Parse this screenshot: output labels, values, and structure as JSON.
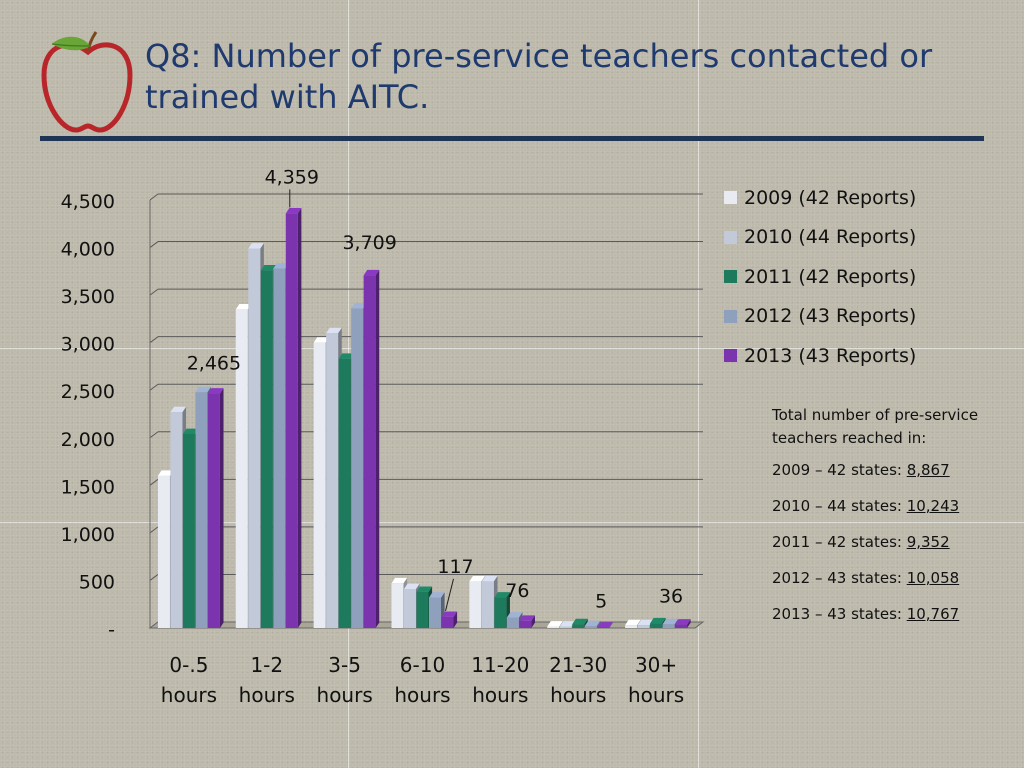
{
  "slide": {
    "title": "Q8: Number of pre-service teachers contacted or trained with AITC."
  },
  "logo": {
    "icon": "apple-icon",
    "colors": {
      "apple": "#b8262a",
      "leaf": "#6aa538"
    }
  },
  "chart_data": {
    "type": "bar",
    "categories": [
      "0-.5 hours",
      "1-2 hours",
      "3-5 hours",
      "6-10 hours",
      "11-20 hours",
      "21-30 hours",
      "30+ hours"
    ],
    "category_lines": [
      [
        "0-.5",
        "hours"
      ],
      [
        "1-2",
        "hours"
      ],
      [
        "3-5",
        "hours"
      ],
      [
        "6-10",
        "hours"
      ],
      [
        "11-20",
        "hours"
      ],
      [
        "21-30",
        "hours"
      ],
      [
        "30+",
        "hours"
      ]
    ],
    "series": [
      {
        "name": "2009 (42 Reports)",
        "color": "#e8ebf2",
        "values": [
          1600,
          3350,
          3000,
          470,
          490,
          15,
          30
        ]
      },
      {
        "name": "2010 (44 Reports)",
        "color": "#c2c9d9",
        "values": [
          2270,
          3990,
          3100,
          410,
          490,
          15,
          30
        ]
      },
      {
        "name": "2011 (42 Reports)",
        "color": "#1d7a5c",
        "values": [
          2040,
          3760,
          2830,
          380,
          320,
          40,
          50
        ]
      },
      {
        "name": "2012 (43 Reports)",
        "color": "#8fa0bd",
        "values": [
          2480,
          3780,
          3360,
          320,
          110,
          20,
          40
        ]
      },
      {
        "name": "2013 (43 Reports)",
        "color": "#7b34ad",
        "values": [
          2465,
          4359,
          3709,
          117,
          76,
          5,
          36
        ]
      }
    ],
    "data_labels": [
      {
        "series": 4,
        "category": 0,
        "text": "2,465"
      },
      {
        "series": 4,
        "category": 1,
        "text": "4,359"
      },
      {
        "series": 4,
        "category": 2,
        "text": "3,709"
      },
      {
        "series": 4,
        "category": 3,
        "text": "117"
      },
      {
        "series": 4,
        "category": 4,
        "text": "76"
      },
      {
        "series": 4,
        "category": 5,
        "text": "5"
      },
      {
        "series": 4,
        "category": 6,
        "text": "36"
      }
    ],
    "ylim": [
      0,
      4500
    ],
    "yticks": [
      0,
      500,
      1000,
      1500,
      2000,
      2500,
      3000,
      3500,
      4000,
      4500
    ],
    "ytick_labels": [
      "-",
      "500",
      "1,000",
      "1,500",
      "2,000",
      "2,500",
      "3,000",
      "3,500",
      "4,000",
      "4,500"
    ],
    "grid": true,
    "legend_position": "right",
    "style": "3d-clustered-column"
  },
  "totals": {
    "heading": "Total number of pre-service teachers reached in:",
    "rows": [
      {
        "label": "2009 – 42 states: ",
        "value": "8,867"
      },
      {
        "label": "2010 – 44 states: ",
        "value": "10,243"
      },
      {
        "label": "2011 – 42 states: ",
        "value": "9,352"
      },
      {
        "label": "2012 – 43 states: ",
        "value": "10,058"
      },
      {
        "label": "2013 – 43 states: ",
        "value": "10,767"
      }
    ]
  }
}
